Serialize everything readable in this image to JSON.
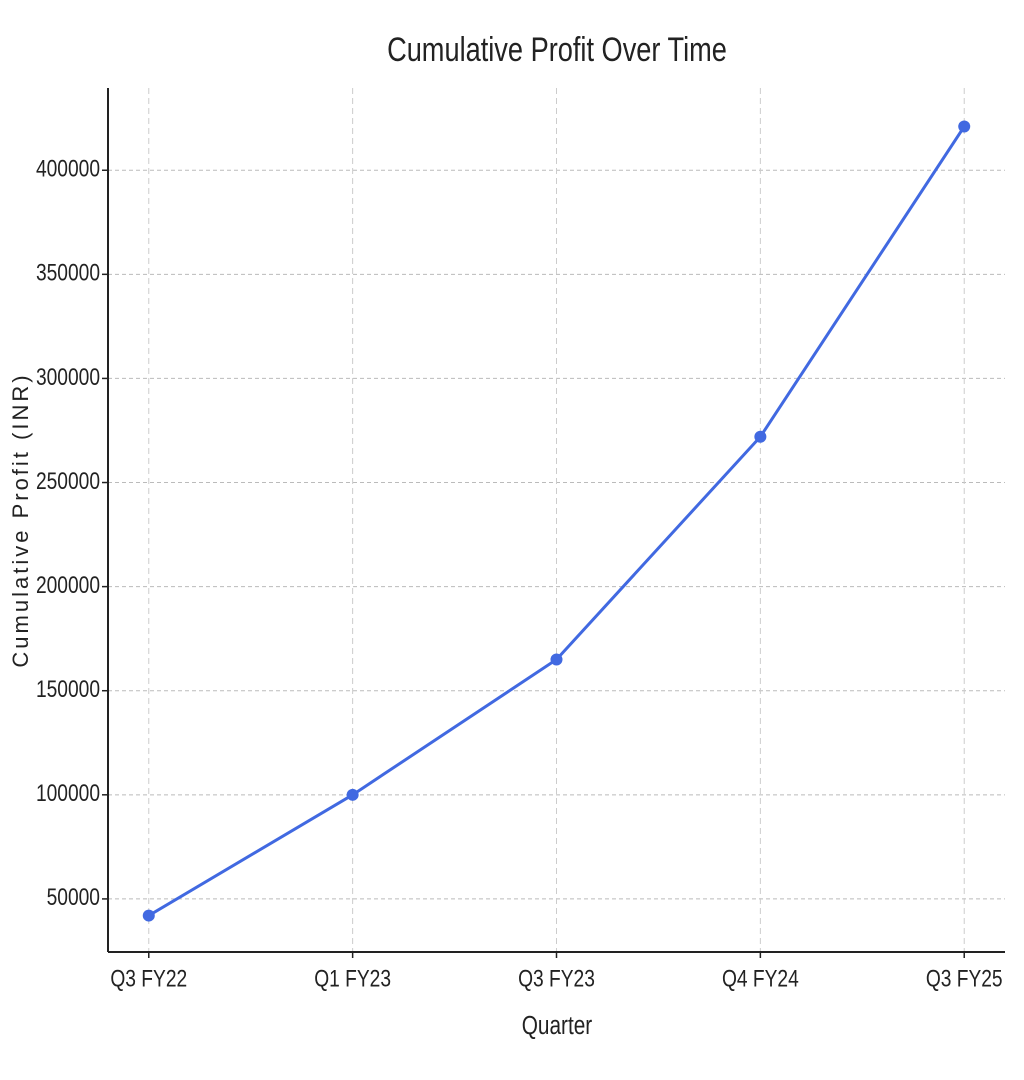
{
  "chart_data": {
    "type": "line",
    "title": "Cumulative Profit Over Time",
    "x_label": "Quarter",
    "y_label": "Cumulative Profit (INR)",
    "categories": [
      "Q3 FY22",
      "Q1 FY23",
      "Q3 FY23",
      "Q4 FY24",
      "Q3 FY25"
    ],
    "series": [
      {
        "name": "Cumulative Profit",
        "color": "#4169e1",
        "values": [
          42000,
          100000,
          165000,
          272000,
          421000
        ]
      }
    ],
    "ylim": [
      24500,
      439500
    ],
    "yticks": [
      50000,
      100000,
      150000,
      200000,
      250000,
      300000,
      350000,
      400000
    ],
    "grid": true
  }
}
